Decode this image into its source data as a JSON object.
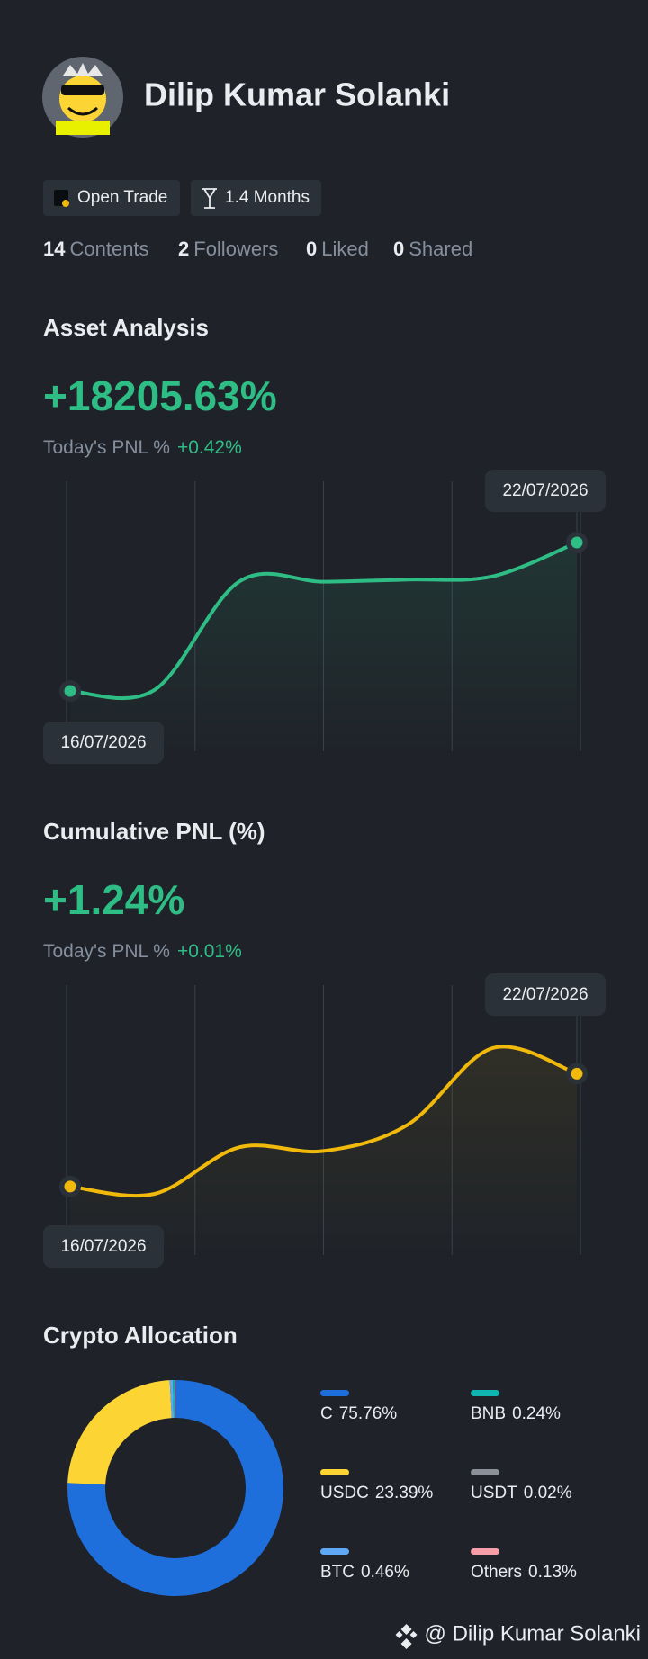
{
  "profile": {
    "name": "Dilip Kumar Solanki",
    "badges": [
      "Open Trade",
      "1.4 Months"
    ],
    "stats": [
      {
        "value": 14,
        "label": "Contents"
      },
      {
        "value": 2,
        "label": "Followers"
      },
      {
        "value": 0,
        "label": "Liked"
      },
      {
        "value": 0,
        "label": "Shared"
      }
    ]
  },
  "chart_data": [
    {
      "type": "line",
      "title": "Asset Analysis",
      "headline": "+18205.63%",
      "subtitle": "Today's PNL %",
      "subtitle_value": "+0.42%",
      "categories": [
        "16/07/2026",
        null,
        null,
        null,
        null,
        null,
        "22/07/2026"
      ],
      "values": [
        0,
        130,
        13394,
        13394,
        13654,
        14044,
        18205.63
      ],
      "color": "#2ebd85"
    },
    {
      "type": "line",
      "title": "Cumulative PNL (%)",
      "headline": "+1.24%",
      "subtitle": "Today's PNL %",
      "subtitle_value": "+0.01%",
      "categories": [
        "16/07/2026",
        null,
        null,
        null,
        null,
        null,
        "22/07/2026"
      ],
      "values": [
        0,
        -0.08,
        0.43,
        0.39,
        0.68,
        1.52,
        1.24
      ],
      "color": "#f0b90b"
    },
    {
      "type": "pie",
      "title": "Crypto Allocation",
      "categories": [
        "C",
        "USDC",
        "BTC",
        "BNB",
        "USDT",
        "Others"
      ],
      "values": [
        75.76,
        23.39,
        0.46,
        0.24,
        0.02,
        0.13
      ],
      "value_labels": [
        "75.76%",
        "23.39%",
        "0.46%",
        "0.24%",
        "0.02%",
        "0.13%"
      ],
      "colors": [
        "#1e6fdc",
        "#fcd535",
        "#5ea8f5",
        "#0fb5b0",
        "#8a8f98",
        "#f59ea8"
      ]
    }
  ],
  "footer": "@ Dilip Kumar Solanki"
}
